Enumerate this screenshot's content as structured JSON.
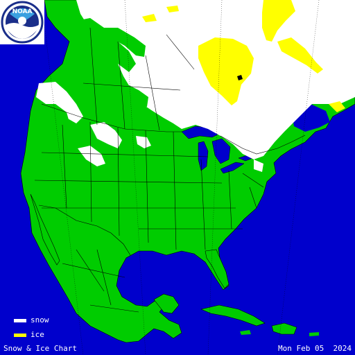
{
  "map": {
    "colors": {
      "water": "#0000cc",
      "land": "#00cc00",
      "snow": "#ffffff",
      "ice": "#ffff00",
      "borders": "#000000"
    }
  },
  "logo": {
    "text": "NOAA"
  },
  "legend": {
    "items": [
      {
        "label": "snow",
        "color": "#ffffff"
      },
      {
        "label": "ice",
        "color": "#ffff00"
      }
    ]
  },
  "footer": {
    "title": "Snow & Ice Chart",
    "date": "Mon Feb 05  2024"
  }
}
